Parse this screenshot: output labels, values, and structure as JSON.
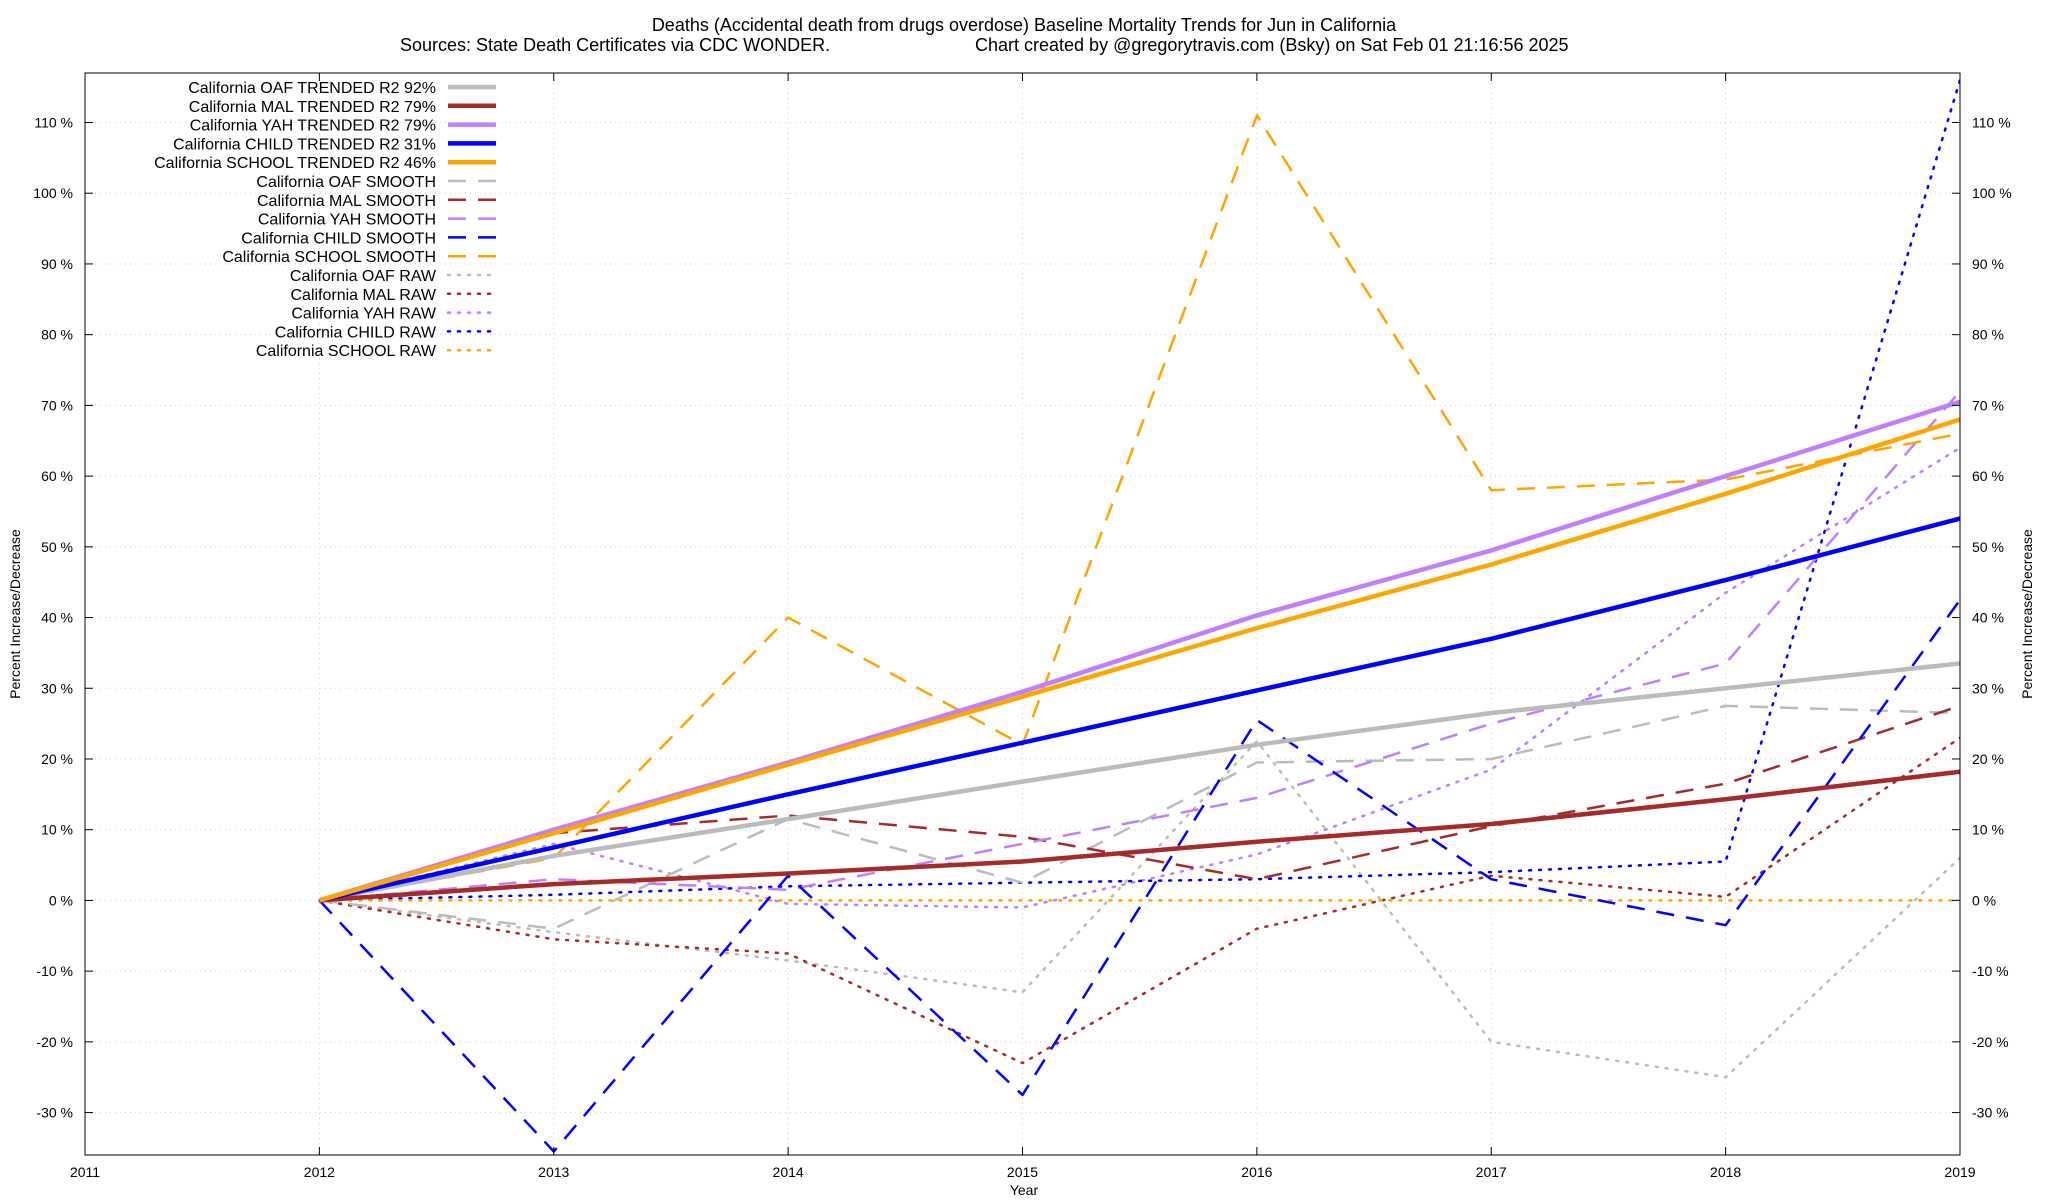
{
  "chart_data": {
    "type": "line",
    "title_line1": "Deaths (Accidental death from drugs overdose)  Baseline Mortality Trends for Jun in California",
    "title_line2_left": "Sources: State Death Certificates via CDC WONDER.",
    "title_line2_right": "Chart created by @gregorytravis.com (Bsky) on Sat Feb 01 21:16:56 2025",
    "xlabel": "Year",
    "ylabel": "Percent Increase/Decrease",
    "ylabel_right": "Percent Increase/Decrease",
    "xlim": [
      2011,
      2019
    ],
    "ylim": [
      -36,
      117
    ],
    "x_ticks": [
      2011,
      2012,
      2013,
      2014,
      2015,
      2016,
      2017,
      2018,
      2019
    ],
    "x_tick_labels": [
      "2011",
      "2012",
      "2013",
      "2014",
      "2015",
      "2016",
      "2017",
      "2018",
      "2019"
    ],
    "y_ticks": [
      -30,
      -20,
      -10,
      0,
      10,
      20,
      30,
      40,
      50,
      60,
      70,
      80,
      90,
      100,
      110
    ],
    "y_tick_labels": [
      "-30 %",
      "-20 %",
      "-10 %",
      "0 %",
      "10 %",
      "20 %",
      "30 %",
      "40 %",
      "50 %",
      "60 %",
      "70 %",
      "80 %",
      "90 %",
      "100 %",
      "110 %"
    ],
    "grid": true,
    "legend_position": "top-left",
    "x": [
      2012,
      2013,
      2014,
      2015,
      2016,
      2017,
      2018,
      2019
    ],
    "series": [
      {
        "name": "California OAF TRENDED R2  92%",
        "style": "solid",
        "color": "#bbbbbb",
        "x": [
          2012,
          2013,
          2014,
          2015,
          2016,
          2017,
          2018,
          2019
        ],
        "values": [
          0,
          6.3,
          11.5,
          16.8,
          22,
          26.5,
          30,
          33.5
        ]
      },
      {
        "name": "California MAL TRENDED R2  79%",
        "style": "solid",
        "color": "#a52a2a",
        "x": [
          2012,
          2013,
          2014,
          2015,
          2016,
          2017,
          2018,
          2019
        ],
        "values": [
          0,
          2.3,
          3.8,
          5.5,
          8.3,
          10.8,
          14.3,
          18.2
        ]
      },
      {
        "name": "California YAH TRENDED R2  79%",
        "style": "solid",
        "color": "#bf7fff",
        "x": [
          2012,
          2013,
          2014,
          2015,
          2016,
          2017,
          2018,
          2019
        ],
        "values": [
          0,
          10,
          19.5,
          29.5,
          40.3,
          49.5,
          60,
          70.5
        ]
      },
      {
        "name": "California CHILD TRENDED R2  31%",
        "style": "solid",
        "color": "#0000ff",
        "x": [
          2012,
          2013,
          2014,
          2015,
          2016,
          2017,
          2018,
          2019
        ],
        "values": [
          0,
          7.5,
          15,
          22.3,
          29.7,
          37,
          45.3,
          54
        ]
      },
      {
        "name": "California SCHOOL TRENDED R2  46%",
        "style": "solid",
        "color": "#ffa500",
        "x": [
          2012,
          2013,
          2014,
          2015,
          2016,
          2017,
          2018,
          2019
        ],
        "values": [
          0,
          9.5,
          19.2,
          28.8,
          38.5,
          47.5,
          57.5,
          68
        ]
      },
      {
        "name": "California OAF SMOOTH",
        "style": "dashed",
        "color": "#bbbbbb",
        "x": [
          2012,
          2013,
          2014,
          2015,
          2016,
          2017,
          2018,
          2019
        ],
        "values": [
          0,
          -4,
          11.5,
          2.5,
          19.5,
          20,
          27.5,
          26.5
        ]
      },
      {
        "name": "California MAL SMOOTH",
        "style": "dashed",
        "color": "#a52a2a",
        "x": [
          2012,
          2013,
          2014,
          2015,
          2016,
          2017,
          2018,
          2019
        ],
        "values": [
          0,
          9.5,
          12,
          9,
          3,
          10.5,
          16.5,
          27.5
        ]
      },
      {
        "name": "California YAH SMOOTH",
        "style": "dashed",
        "color": "#bf7fff",
        "x": [
          2012,
          2013,
          2014,
          2015,
          2016,
          2017,
          2018,
          2019
        ],
        "values": [
          0,
          3,
          1.5,
          8,
          14.5,
          25,
          33.5,
          72
        ]
      },
      {
        "name": "California CHILD SMOOTH",
        "style": "dashed",
        "color": "#0000ff",
        "x": [
          2012,
          2013,
          2014,
          2015,
          2016,
          2017,
          2018,
          2019
        ],
        "values": [
          0,
          -35.5,
          3.5,
          -27.5,
          25.5,
          3,
          -3.5,
          42.5
        ]
      },
      {
        "name": "California SCHOOL SMOOTH",
        "style": "dashed",
        "color": "#ffa500",
        "x": [
          2012,
          2013,
          2014,
          2015,
          2016,
          2017,
          2018,
          2019
        ],
        "values": [
          0,
          6,
          40,
          22,
          111,
          58,
          59.5,
          66
        ]
      },
      {
        "name": "California OAF RAW",
        "style": "dotted",
        "color": "#bbbbbb",
        "x": [
          2012,
          2013,
          2014,
          2015,
          2016,
          2017,
          2018,
          2019
        ],
        "values": [
          0,
          -4.5,
          -8.5,
          -13,
          22.5,
          -20,
          -25,
          6
        ]
      },
      {
        "name": "California MAL RAW",
        "style": "dotted",
        "color": "#a52a2a",
        "x": [
          2012,
          2013,
          2014,
          2015,
          2016,
          2017,
          2018,
          2019
        ],
        "values": [
          0,
          -5.5,
          -7.5,
          -23,
          -4,
          3.5,
          0.5,
          23
        ]
      },
      {
        "name": "California YAH RAW",
        "style": "dotted",
        "color": "#bf7fff",
        "x": [
          2012,
          2013,
          2014,
          2015,
          2016,
          2017,
          2018,
          2019
        ],
        "values": [
          0,
          8,
          -0.5,
          -1,
          6.5,
          18.5,
          43.5,
          64
        ]
      },
      {
        "name": "California CHILD RAW",
        "style": "dotted",
        "color": "#0000ff",
        "x": [
          2012,
          2013,
          2014,
          2015,
          2016,
          2017,
          2018,
          2019
        ],
        "values": [
          0,
          0.8,
          2,
          2.5,
          3,
          4,
          5.5,
          116
        ]
      },
      {
        "name": "California SCHOOL RAW",
        "style": "dotted",
        "color": "#ffa500",
        "x": [
          2012,
          2013,
          2014,
          2015,
          2016,
          2017,
          2018,
          2019
        ],
        "values": [
          0,
          0,
          0,
          0,
          0,
          0,
          0,
          0
        ]
      }
    ]
  }
}
